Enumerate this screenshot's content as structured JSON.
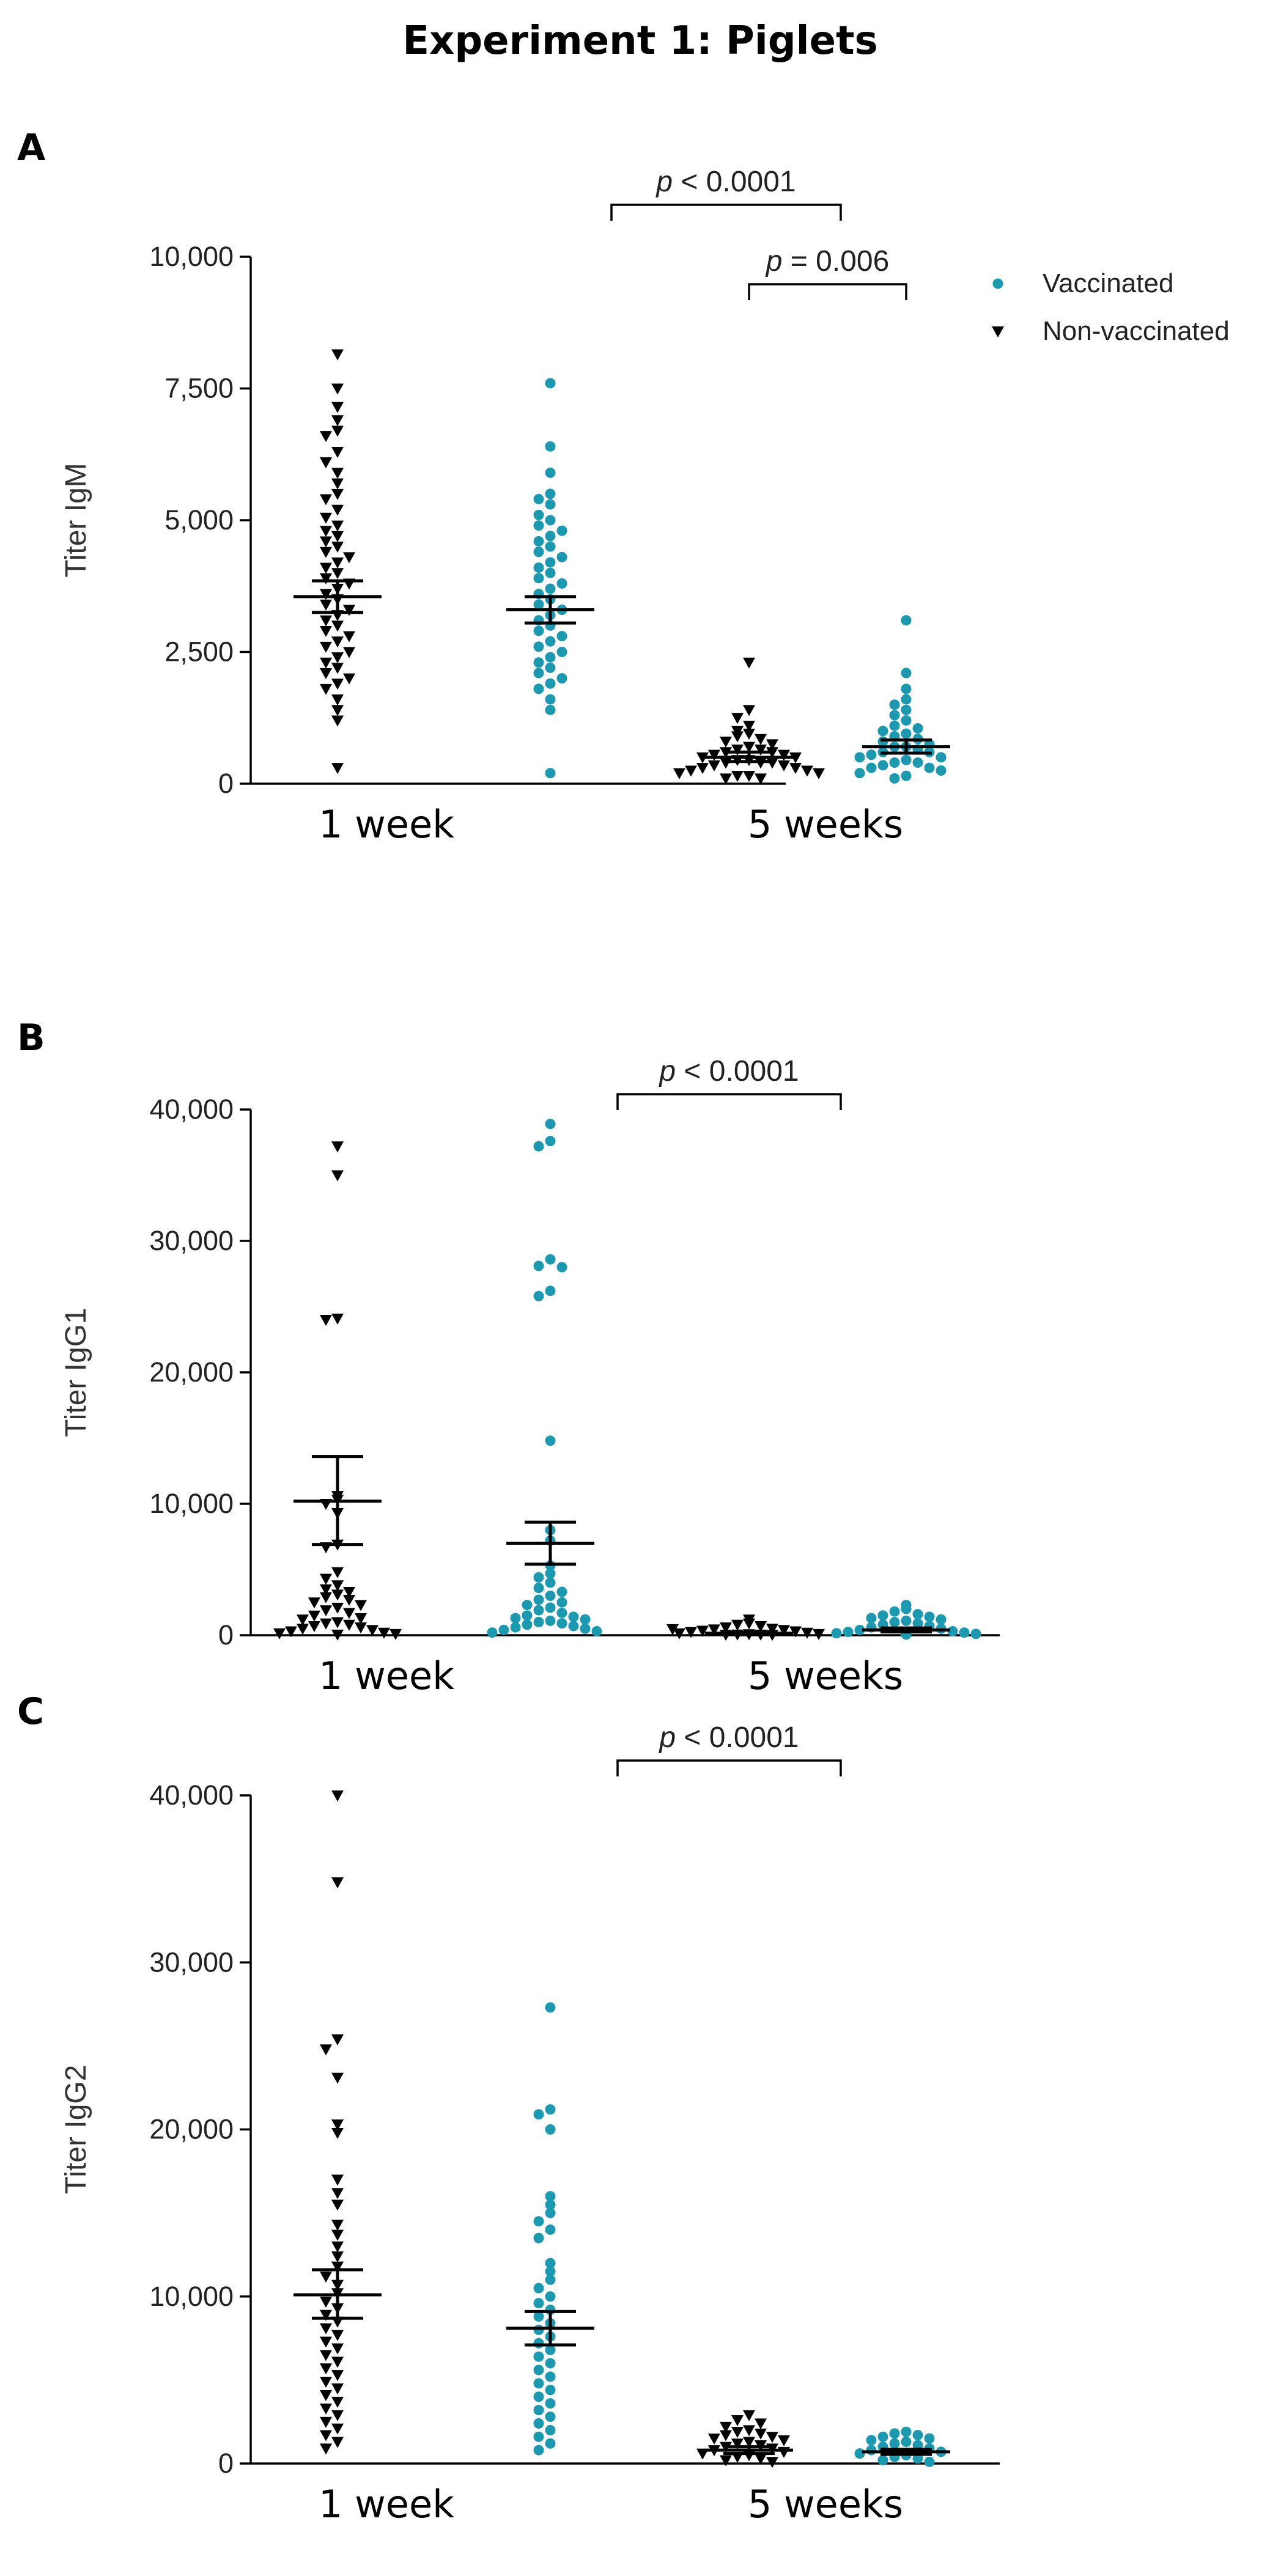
{
  "title": "Experiment 1: Piglets",
  "colors": {
    "vaccinated": "#1a99b0",
    "non_vaccinated": "#000000"
  },
  "legend": [
    {
      "label": "Vaccinated",
      "marker": "circle",
      "color": "#1a99b0"
    },
    {
      "label": "Non-vaccinated",
      "marker": "down-triangle",
      "color": "#000000"
    }
  ],
  "chart_data": [
    {
      "panel": "A",
      "type": "scatter",
      "ylabel": "Titer IgM",
      "ylim": [
        0,
        10000
      ],
      "yticks": [
        0,
        2500,
        5000,
        7500,
        10000
      ],
      "ytick_labels": [
        "0",
        "2,500",
        "5,000",
        "7,500",
        "10,000"
      ],
      "categories": [
        "1 week",
        "5 weeks"
      ],
      "comparisons": [
        {
          "label": "p < 0.0001",
          "from": "1 week / Vaccinated",
          "to": "5 weeks / Non-vaccinated"
        },
        {
          "label": "p = 0.006",
          "from": "5 weeks / Non-vaccinated",
          "to": "5 weeks / Vaccinated"
        }
      ],
      "series": [
        {
          "name": "Non-vaccinated",
          "category": "1 week",
          "mean": 3550,
          "sem_low": 3250,
          "sem_high": 3850,
          "values": [
            8150,
            7500,
            7150,
            6900,
            6700,
            6600,
            6300,
            6100,
            5900,
            5700,
            5500,
            5400,
            5200,
            5050,
            4900,
            4800,
            4700,
            4600,
            4500,
            4400,
            4300,
            4200,
            4100,
            4000,
            3900,
            3800,
            3700,
            3600,
            3500,
            3400,
            3300,
            3200,
            3100,
            3000,
            2900,
            2800,
            2700,
            2600,
            2500,
            2400,
            2300,
            2200,
            2100,
            2000,
            1900,
            1800,
            1600,
            1400,
            1200,
            300
          ]
        },
        {
          "name": "Vaccinated",
          "category": "1 week",
          "mean": 3300,
          "sem_low": 3050,
          "sem_high": 3550,
          "values": [
            7600,
            6400,
            5900,
            5500,
            5400,
            5300,
            5100,
            5000,
            4900,
            4800,
            4700,
            4600,
            4500,
            4400,
            4300,
            4200,
            4100,
            4000,
            3900,
            3800,
            3700,
            3600,
            3500,
            3400,
            3300,
            3200,
            3100,
            3000,
            2900,
            2800,
            2700,
            2600,
            2500,
            2400,
            2300,
            2200,
            2100,
            2000,
            1900,
            1800,
            1600,
            1400,
            200
          ]
        },
        {
          "name": "Non-vaccinated",
          "category": "5 weeks",
          "mean": 500,
          "sem_low": 420,
          "sem_high": 600,
          "values": [
            2300,
            1400,
            1250,
            1100,
            1000,
            950,
            900,
            850,
            800,
            750,
            700,
            650,
            650,
            600,
            600,
            550,
            550,
            500,
            500,
            450,
            450,
            400,
            400,
            400,
            350,
            350,
            300,
            300,
            250,
            250,
            200,
            200,
            150,
            150,
            100,
            100
          ]
        },
        {
          "name": "Vaccinated",
          "category": "5 weeks",
          "mean": 700,
          "sem_low": 580,
          "sem_high": 830,
          "values": [
            3100,
            2100,
            1800,
            1600,
            1500,
            1400,
            1300,
            1200,
            1100,
            1050,
            1000,
            950,
            900,
            850,
            800,
            750,
            700,
            700,
            650,
            600,
            600,
            550,
            500,
            500,
            450,
            400,
            400,
            350,
            300,
            300,
            250,
            200,
            150,
            100
          ]
        }
      ]
    },
    {
      "panel": "B",
      "type": "scatter",
      "ylabel": "Titer IgG1",
      "ylim": [
        0,
        40000
      ],
      "yticks": [
        0,
        10000,
        20000,
        30000,
        40000
      ],
      "ytick_labels": [
        "0",
        "10,000",
        "20,000",
        "30,000",
        "40,000"
      ],
      "categories": [
        "1 week",
        "5 weeks"
      ],
      "comparisons": [
        {
          "label": "p < 0.0001",
          "from": "1 week / Vaccinated",
          "to": "5 weeks / Non-vaccinated"
        }
      ],
      "series": [
        {
          "name": "Non-vaccinated",
          "category": "1 week",
          "mean": 10200,
          "sem_low": 6900,
          "sem_high": 13600,
          "values": [
            37200,
            35000,
            24100,
            24000,
            10600,
            10300,
            10000,
            9300,
            6900,
            6700,
            4800,
            4300,
            3800,
            3500,
            3300,
            3100,
            2900,
            2700,
            2500,
            2300,
            2100,
            1900,
            1700,
            1500,
            1300,
            1200,
            1000,
            900,
            800,
            700,
            600,
            500,
            400,
            300,
            200,
            150,
            100,
            50
          ]
        },
        {
          "name": "Vaccinated",
          "category": "1 week",
          "mean": 7000,
          "sem_low": 5400,
          "sem_high": 8600,
          "values": [
            38900,
            37600,
            37200,
            28600,
            28100,
            28000,
            26200,
            25800,
            14800,
            8000,
            7200,
            5300,
            4700,
            4400,
            4000,
            3600,
            3300,
            3000,
            2700,
            2500,
            2300,
            2100,
            1900,
            1700,
            1500,
            1400,
            1300,
            1200,
            1100,
            1000,
            900,
            800,
            700,
            600,
            500,
            400,
            300,
            200
          ]
        },
        {
          "name": "Non-vaccinated",
          "category": "5 weeks",
          "mean": 150,
          "sem_low": 80,
          "sem_high": 220,
          "values": [
            1200,
            900,
            800,
            700,
            600,
            500,
            450,
            400,
            350,
            300,
            250,
            200,
            150,
            100,
            100,
            80,
            60,
            50,
            40,
            30
          ]
        },
        {
          "name": "Vaccinated",
          "category": "5 weeks",
          "mean": 400,
          "sem_low": 250,
          "sem_high": 550,
          "values": [
            2300,
            2000,
            1800,
            1600,
            1500,
            1400,
            1300,
            1200,
            1100,
            1000,
            900,
            800,
            700,
            600,
            500,
            400,
            300,
            250,
            200,
            150,
            100,
            50
          ]
        }
      ]
    },
    {
      "panel": "C",
      "type": "scatter",
      "ylabel": "Titer IgG2",
      "ylim": [
        0,
        40000
      ],
      "yticks": [
        0,
        10000,
        20000,
        30000,
        40000
      ],
      "ytick_labels": [
        "0",
        "10,000",
        "20,000",
        "30,000",
        "40,000"
      ],
      "categories": [
        "1 week",
        "5 weeks"
      ],
      "comparisons": [
        {
          "label": "p < 0.0001",
          "from": "1 week / Vaccinated",
          "to": "5 weeks / Non-vaccinated"
        }
      ],
      "series": [
        {
          "name": "Non-vaccinated",
          "category": "1 week",
          "mean": 10100,
          "sem_low": 8700,
          "sem_high": 11600,
          "values": [
            40000,
            34800,
            25400,
            24800,
            23100,
            20300,
            19800,
            17000,
            16200,
            15500,
            14300,
            13700,
            13000,
            12400,
            11800,
            11200,
            10700,
            10200,
            9700,
            9300,
            8900,
            8500,
            8100,
            7700,
            7300,
            6900,
            6500,
            6100,
            5700,
            5300,
            4900,
            4500,
            4100,
            3700,
            3300,
            2900,
            2500,
            2100,
            1700,
            1300,
            900
          ]
        },
        {
          "name": "Vaccinated",
          "category": "1 week",
          "mean": 8100,
          "sem_low": 7100,
          "sem_high": 9100,
          "values": [
            27300,
            21200,
            20900,
            20000,
            16000,
            15500,
            15000,
            14500,
            14000,
            13500,
            12000,
            11500,
            11000,
            10500,
            10000,
            9600,
            9200,
            8800,
            8400,
            8000,
            7600,
            7200,
            6800,
            6400,
            6000,
            5600,
            5200,
            4800,
            4400,
            4000,
            3600,
            3200,
            2800,
            2400,
            2000,
            1600,
            1200,
            800
          ]
        },
        {
          "name": "Non-vaccinated",
          "category": "5 weeks",
          "mean": 800,
          "sem_low": 600,
          "sem_high": 1000,
          "values": [
            2900,
            2600,
            2400,
            2200,
            2000,
            1900,
            1800,
            1700,
            1600,
            1500,
            1400,
            1300,
            1200,
            1100,
            1000,
            900,
            800,
            700,
            600,
            500,
            400,
            300,
            200,
            100
          ]
        },
        {
          "name": "Vaccinated",
          "category": "5 weeks",
          "mean": 700,
          "sem_low": 550,
          "sem_high": 850,
          "values": [
            1900,
            1800,
            1700,
            1600,
            1500,
            1400,
            1300,
            1200,
            1100,
            1000,
            900,
            800,
            700,
            600,
            500,
            400,
            300,
            200,
            100
          ]
        }
      ]
    }
  ]
}
